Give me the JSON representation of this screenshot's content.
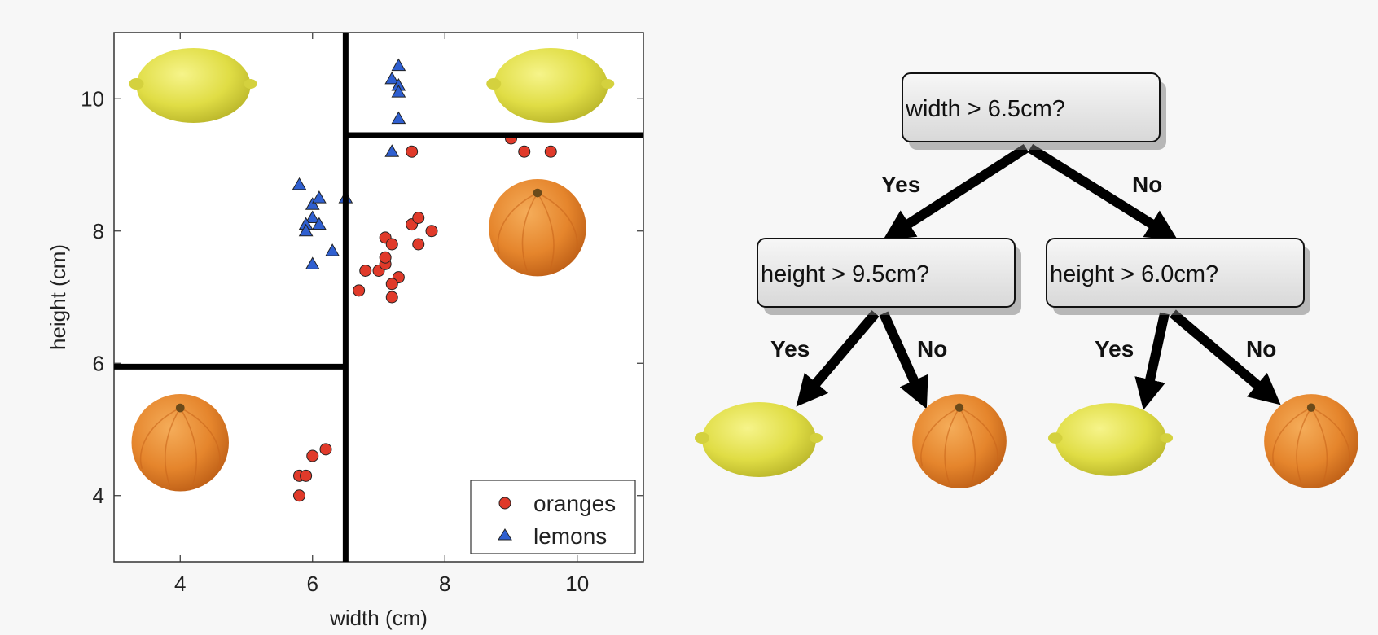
{
  "chart_data": {
    "type": "scatter",
    "xlabel": "width (cm)",
    "ylabel": "height (cm)",
    "xlim": [
      3,
      11
    ],
    "ylim": [
      3,
      11
    ],
    "xticks": [
      4,
      6,
      8,
      10
    ],
    "yticks": [
      4,
      6,
      8,
      10
    ],
    "legend_position": "bottom-right",
    "series": [
      {
        "name": "oranges",
        "marker": "circle",
        "color": "#e03a2a",
        "points": [
          [
            5.8,
            4.0
          ],
          [
            5.8,
            4.3
          ],
          [
            5.9,
            4.3
          ],
          [
            6.0,
            4.6
          ],
          [
            6.2,
            4.7
          ],
          [
            6.7,
            7.1
          ],
          [
            6.8,
            7.4
          ],
          [
            7.0,
            7.4
          ],
          [
            7.1,
            7.5
          ],
          [
            7.1,
            7.6
          ],
          [
            7.3,
            7.3
          ],
          [
            7.2,
            7.2
          ],
          [
            7.2,
            7.0
          ],
          [
            7.1,
            7.9
          ],
          [
            7.2,
            7.8
          ],
          [
            7.5,
            8.1
          ],
          [
            7.6,
            8.2
          ],
          [
            7.8,
            8.0
          ],
          [
            7.6,
            7.8
          ],
          [
            7.5,
            9.2
          ],
          [
            9.0,
            9.4
          ],
          [
            9.2,
            9.2
          ],
          [
            9.6,
            9.2
          ]
        ]
      },
      {
        "name": "lemons",
        "marker": "triangle",
        "color": "#2f5fd0",
        "points": [
          [
            5.8,
            8.7
          ],
          [
            6.0,
            8.4
          ],
          [
            6.1,
            8.5
          ],
          [
            6.0,
            8.2
          ],
          [
            5.9,
            8.1
          ],
          [
            5.9,
            8.0
          ],
          [
            6.1,
            8.1
          ],
          [
            6.3,
            7.7
          ],
          [
            6.0,
            7.5
          ],
          [
            6.5,
            8.5
          ],
          [
            7.3,
            10.5
          ],
          [
            7.2,
            10.3
          ],
          [
            7.3,
            10.2
          ],
          [
            7.3,
            10.1
          ],
          [
            7.3,
            9.7
          ],
          [
            7.2,
            9.2
          ]
        ]
      }
    ],
    "decision_lines": [
      {
        "orientation": "vertical",
        "x": 6.5,
        "from": 3,
        "to": 11
      },
      {
        "orientation": "horizontal",
        "y": 9.45,
        "from": 6.5,
        "to": 11
      },
      {
        "orientation": "horizontal",
        "y": 5.95,
        "from": 3,
        "to": 6.5
      }
    ],
    "region_images": [
      {
        "fruit": "lemon",
        "x": 4.2,
        "y": 10.2
      },
      {
        "fruit": "lemon",
        "x": 9.6,
        "y": 10.2
      },
      {
        "fruit": "orange",
        "x": 9.4,
        "y": 8.05
      },
      {
        "fruit": "orange",
        "x": 4.0,
        "y": 4.8
      }
    ]
  },
  "tree": {
    "root": {
      "label": "width > 6.5cm?"
    },
    "left": {
      "label": "height > 9.5cm?"
    },
    "right": {
      "label": "height > 6.0cm?"
    },
    "edges": {
      "yes": "Yes",
      "no": "No"
    },
    "leaves": [
      "lemon",
      "orange",
      "lemon",
      "orange"
    ]
  },
  "colors": {
    "orange_fruit": "#e98a30",
    "lemon_fruit": "#e3e04a",
    "node_fill": "#e6e6e6"
  }
}
